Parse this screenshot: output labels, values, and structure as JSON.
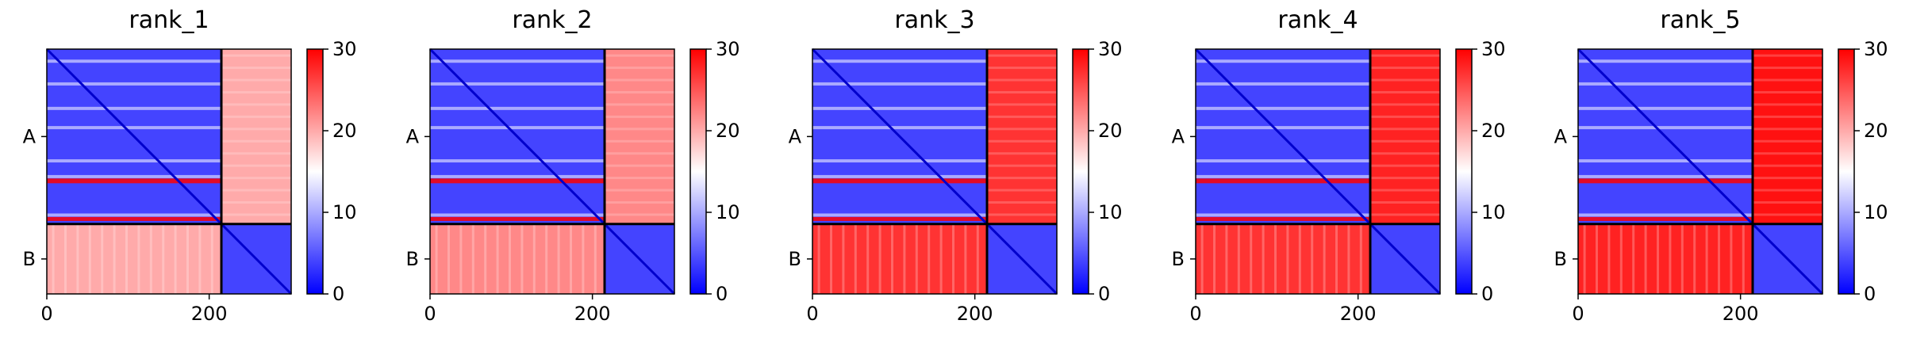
{
  "chart_data": [
    {
      "type": "heatmap",
      "title": "rank_1",
      "x_ticks": [
        "0",
        "200"
      ],
      "y_ticks": [
        "A",
        "B"
      ],
      "colorbar_ticks": [
        "0",
        "10",
        "20",
        "30"
      ],
      "colorbar_range": [
        0,
        30
      ],
      "colormap": [
        "#0000ff",
        "#ffffff",
        "#ff0000"
      ],
      "chain_boundary": 215,
      "length": 301,
      "chains": [
        {
          "name": "A",
          "start": 0,
          "end": 215
        },
        {
          "name": "B",
          "start": 215,
          "end": 301
        }
      ],
      "inter_chain_pae": {
        "A_to_B": 20,
        "B_to_A": 20
      },
      "intra_chain_pae_typical": 4
    },
    {
      "type": "heatmap",
      "title": "rank_2",
      "x_ticks": [
        "0",
        "200"
      ],
      "y_ticks": [
        "A",
        "B"
      ],
      "colorbar_ticks": [
        "0",
        "10",
        "20",
        "30"
      ],
      "colorbar_range": [
        0,
        30
      ],
      "colormap": [
        "#0000ff",
        "#ffffff",
        "#ff0000"
      ],
      "chain_boundary": 215,
      "length": 301,
      "chains": [
        {
          "name": "A",
          "start": 0,
          "end": 215
        },
        {
          "name": "B",
          "start": 215,
          "end": 301
        }
      ],
      "inter_chain_pae": {
        "A_to_B": 22,
        "B_to_A": 22
      },
      "intra_chain_pae_typical": 4
    },
    {
      "type": "heatmap",
      "title": "rank_3",
      "x_ticks": [
        "0",
        "200"
      ],
      "y_ticks": [
        "A",
        "B"
      ],
      "colorbar_ticks": [
        "0",
        "10",
        "20",
        "30"
      ],
      "colorbar_range": [
        0,
        30
      ],
      "colormap": [
        "#0000ff",
        "#ffffff",
        "#ff0000"
      ],
      "chain_boundary": 215,
      "length": 301,
      "chains": [
        {
          "name": "A",
          "start": 0,
          "end": 215
        },
        {
          "name": "B",
          "start": 215,
          "end": 301
        }
      ],
      "inter_chain_pae": {
        "A_to_B": 27,
        "B_to_A": 27
      },
      "intra_chain_pae_typical": 4
    },
    {
      "type": "heatmap",
      "title": "rank_4",
      "x_ticks": [
        "0",
        "200"
      ],
      "y_ticks": [
        "A",
        "B"
      ],
      "colorbar_ticks": [
        "0",
        "10",
        "20",
        "30"
      ],
      "colorbar_range": [
        0,
        30
      ],
      "colormap": [
        "#0000ff",
        "#ffffff",
        "#ff0000"
      ],
      "chain_boundary": 215,
      "length": 301,
      "chains": [
        {
          "name": "A",
          "start": 0,
          "end": 215
        },
        {
          "name": "B",
          "start": 215,
          "end": 301
        }
      ],
      "inter_chain_pae": {
        "A_to_B": 28,
        "B_to_A": 27
      },
      "intra_chain_pae_typical": 4
    },
    {
      "type": "heatmap",
      "title": "rank_5",
      "x_ticks": [
        "0",
        "200"
      ],
      "y_ticks": [
        "A",
        "B"
      ],
      "colorbar_ticks": [
        "0",
        "10",
        "20",
        "30"
      ],
      "colorbar_range": [
        0,
        30
      ],
      "colormap": [
        "#0000ff",
        "#ffffff",
        "#ff0000"
      ],
      "chain_boundary": 215,
      "length": 301,
      "chains": [
        {
          "name": "A",
          "start": 0,
          "end": 215
        },
        {
          "name": "B",
          "start": 215,
          "end": 301
        }
      ],
      "inter_chain_pae": {
        "A_to_B": 29,
        "B_to_A": 28
      },
      "intra_chain_pae_typical": 4
    }
  ]
}
